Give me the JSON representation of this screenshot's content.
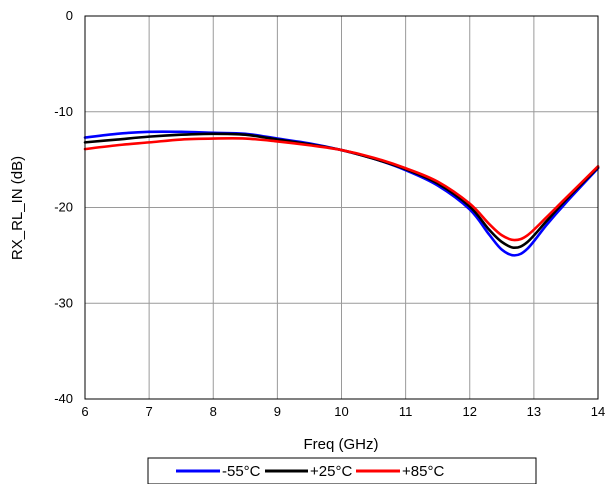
{
  "chart_data": {
    "type": "line",
    "title": "",
    "xlabel": "Freq (GHz)",
    "ylabel": "RX_RL_IN (dB)",
    "xlim": [
      6,
      14
    ],
    "ylim": [
      -40,
      0
    ],
    "xticks": [
      6,
      7,
      8,
      9,
      10,
      11,
      12,
      13,
      14
    ],
    "yticks": [
      0,
      -10,
      -20,
      -30,
      -40
    ],
    "grid": true,
    "legend_position": "bottom",
    "x": [
      6.0,
      6.5,
      7.0,
      7.5,
      8.0,
      8.5,
      9.0,
      9.5,
      10.0,
      10.5,
      11.0,
      11.5,
      12.0,
      12.3,
      12.5,
      12.7,
      12.9,
      13.2,
      13.5,
      14.0
    ],
    "series": [
      {
        "name": "-55°C",
        "color": "#0000ff",
        "values": [
          -12.7,
          -12.3,
          -12.1,
          -12.1,
          -12.2,
          -12.3,
          -12.8,
          -13.3,
          -14.0,
          -14.9,
          -16.1,
          -17.7,
          -20.2,
          -22.8,
          -24.4,
          -25.0,
          -24.3,
          -21.8,
          -19.5,
          -15.9
        ]
      },
      {
        "name": "+25°C",
        "color": "#000000",
        "values": [
          -13.2,
          -12.9,
          -12.6,
          -12.4,
          -12.3,
          -12.4,
          -12.9,
          -13.4,
          -14.0,
          -14.9,
          -16.0,
          -17.5,
          -19.9,
          -22.3,
          -23.6,
          -24.2,
          -23.6,
          -21.4,
          -19.2,
          -15.8
        ]
      },
      {
        "name": "+85°C",
        "color": "#ff0000",
        "values": [
          -13.9,
          -13.5,
          -13.2,
          -12.9,
          -12.8,
          -12.8,
          -13.1,
          -13.5,
          -14.0,
          -14.8,
          -15.9,
          -17.3,
          -19.6,
          -21.7,
          -22.9,
          -23.4,
          -22.9,
          -21.0,
          -19.0,
          -15.7
        ]
      }
    ]
  }
}
